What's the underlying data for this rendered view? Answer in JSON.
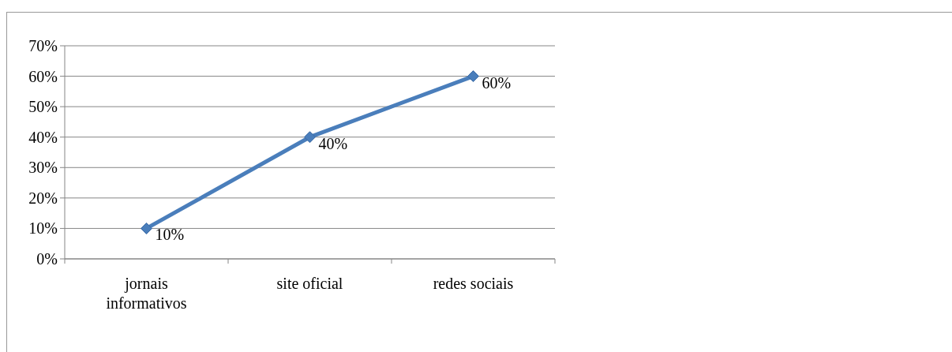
{
  "chart_data": {
    "type": "line",
    "categories": [
      "jornais informativos",
      "site oficial",
      "redes sociais"
    ],
    "series": [
      {
        "color": "#4a7ebb",
        "values": [
          10,
          40,
          60
        ],
        "value_labels": [
          "10%",
          "40%",
          "60%"
        ]
      }
    ],
    "ylim": [
      0,
      70
    ],
    "yticks": [
      {
        "value": 0,
        "label": "0%"
      },
      {
        "value": 10,
        "label": "10%"
      },
      {
        "value": 20,
        "label": "20%"
      },
      {
        "value": 30,
        "label": "30%"
      },
      {
        "value": 40,
        "label": "40%"
      },
      {
        "value": 50,
        "label": "50%"
      },
      {
        "value": 60,
        "label": "60%"
      },
      {
        "value": 70,
        "label": "70%"
      }
    ],
    "grid": "y",
    "marker": "diamond",
    "line_style": "solid"
  }
}
